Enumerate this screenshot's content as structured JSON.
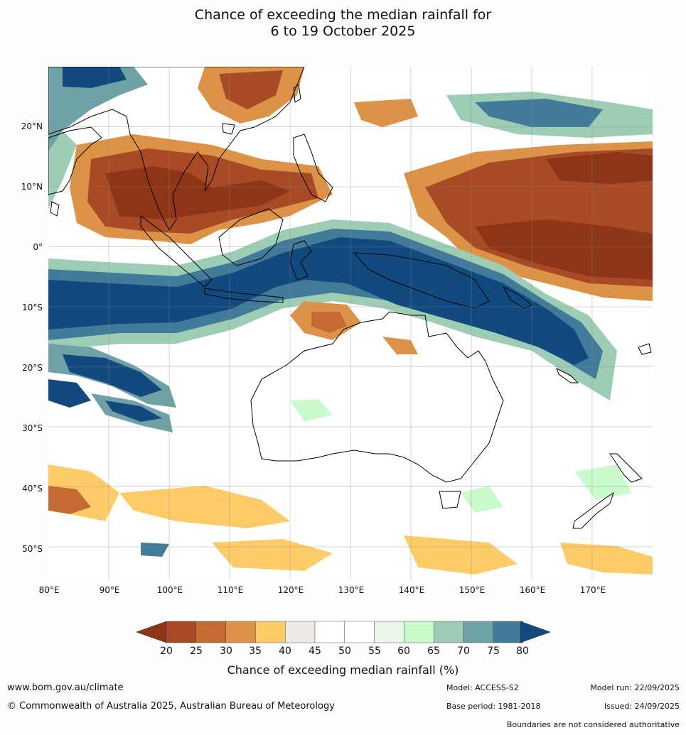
{
  "title": {
    "line1": "Chance of exceeding the median rainfall for",
    "line2": "6 to 19 October 2025"
  },
  "map": {
    "lat_labels": [
      "20°N",
      "10°N",
      "0°",
      "10°S",
      "20°S",
      "30°S",
      "40°S",
      "50°S"
    ],
    "lon_labels": [
      "80°E",
      "90°E",
      "100°E",
      "110°E",
      "120°E",
      "130°E",
      "140°E",
      "150°E",
      "160°E",
      "170°E"
    ],
    "palette": {
      "p20": "#8e3518",
      "p25": "#a84a25",
      "p30": "#c46a32",
      "p35": "#dd9347",
      "p40": "#fdcc69",
      "p45": "#eeebe7",
      "p50": "#ffffff",
      "p60": "#eaf5ea",
      "p65": "#c9fbcd",
      "p70": "#9dcdb5",
      "p75": "#6ea2a7",
      "p80": "#427a99",
      "p85": "#124a80",
      "land_outline": "#000000",
      "grid": "#8a8a8a"
    }
  },
  "colorbar": {
    "ticks": [
      "20",
      "25",
      "30",
      "35",
      "40",
      "45",
      "50",
      "55",
      "60",
      "65",
      "70",
      "75",
      "80"
    ],
    "title": "Chance of exceeding median rainfall (%)"
  },
  "footer": {
    "website": "www.bom.gov.au/climate",
    "copyright": "© Commonwealth of Australia 2025, Australian Bureau of Meteorology",
    "model": "Model: ACCESS-S2",
    "base_period": "Base period: 1981-2018",
    "model_run": "Model run: 22/09/2025",
    "issued": "Issued: 24/09/2025",
    "disclaimer": "Boundaries are not considered authoritative"
  }
}
